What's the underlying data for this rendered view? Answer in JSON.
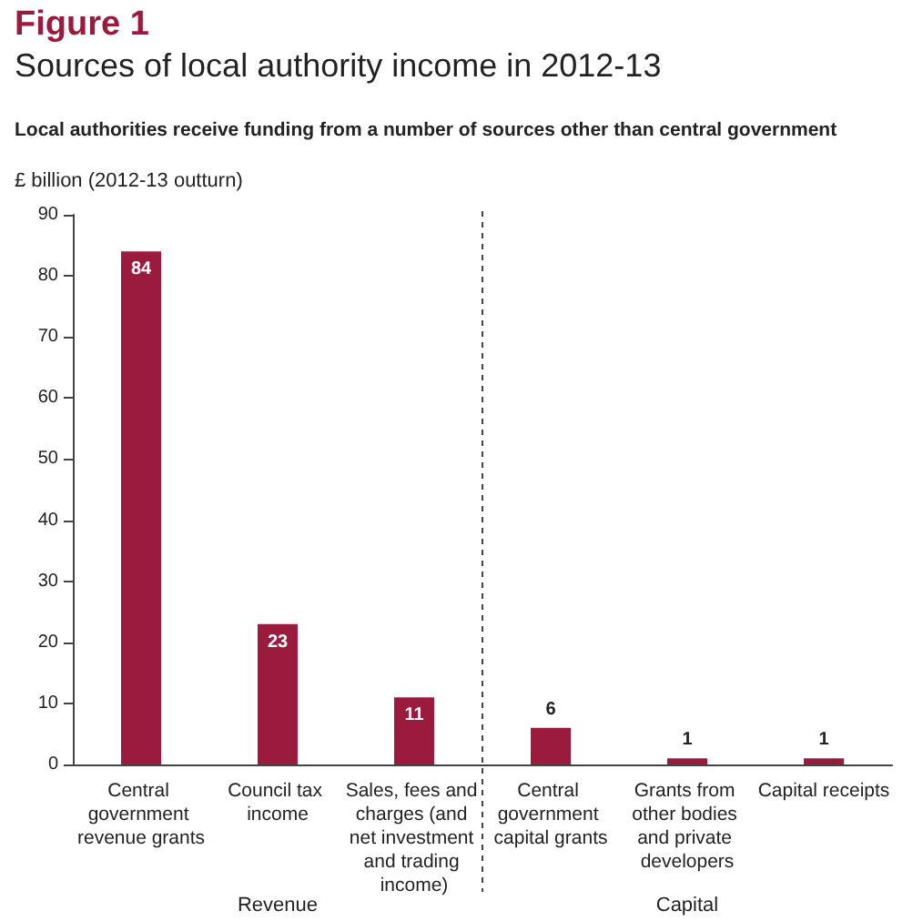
{
  "chart_data": {
    "type": "bar",
    "title": "Figure 1",
    "subtitle": "Sources of local authority income in 2012-13",
    "annotations": [
      "Local authorities receive funding from a number of sources other than central government",
      "Revenue",
      "Capital"
    ],
    "ylabel": "£ billion (2012-13 outturn)",
    "categories": [
      "Central government revenue grants",
      "Council tax income",
      "Sales, fees and charges (and net investment and trading income)",
      "Central government capital grants",
      "Grants from other bodies and private developers",
      "Capital receipts"
    ],
    "values": [
      84,
      23,
      11,
      6,
      1,
      1
    ],
    "color": "#9b1b3e",
    "ylim": [
      0,
      90
    ],
    "yticks": [
      0,
      10,
      20,
      30,
      40,
      50,
      60,
      70,
      80,
      90
    ],
    "grid": false,
    "data_labels": true
  }
}
